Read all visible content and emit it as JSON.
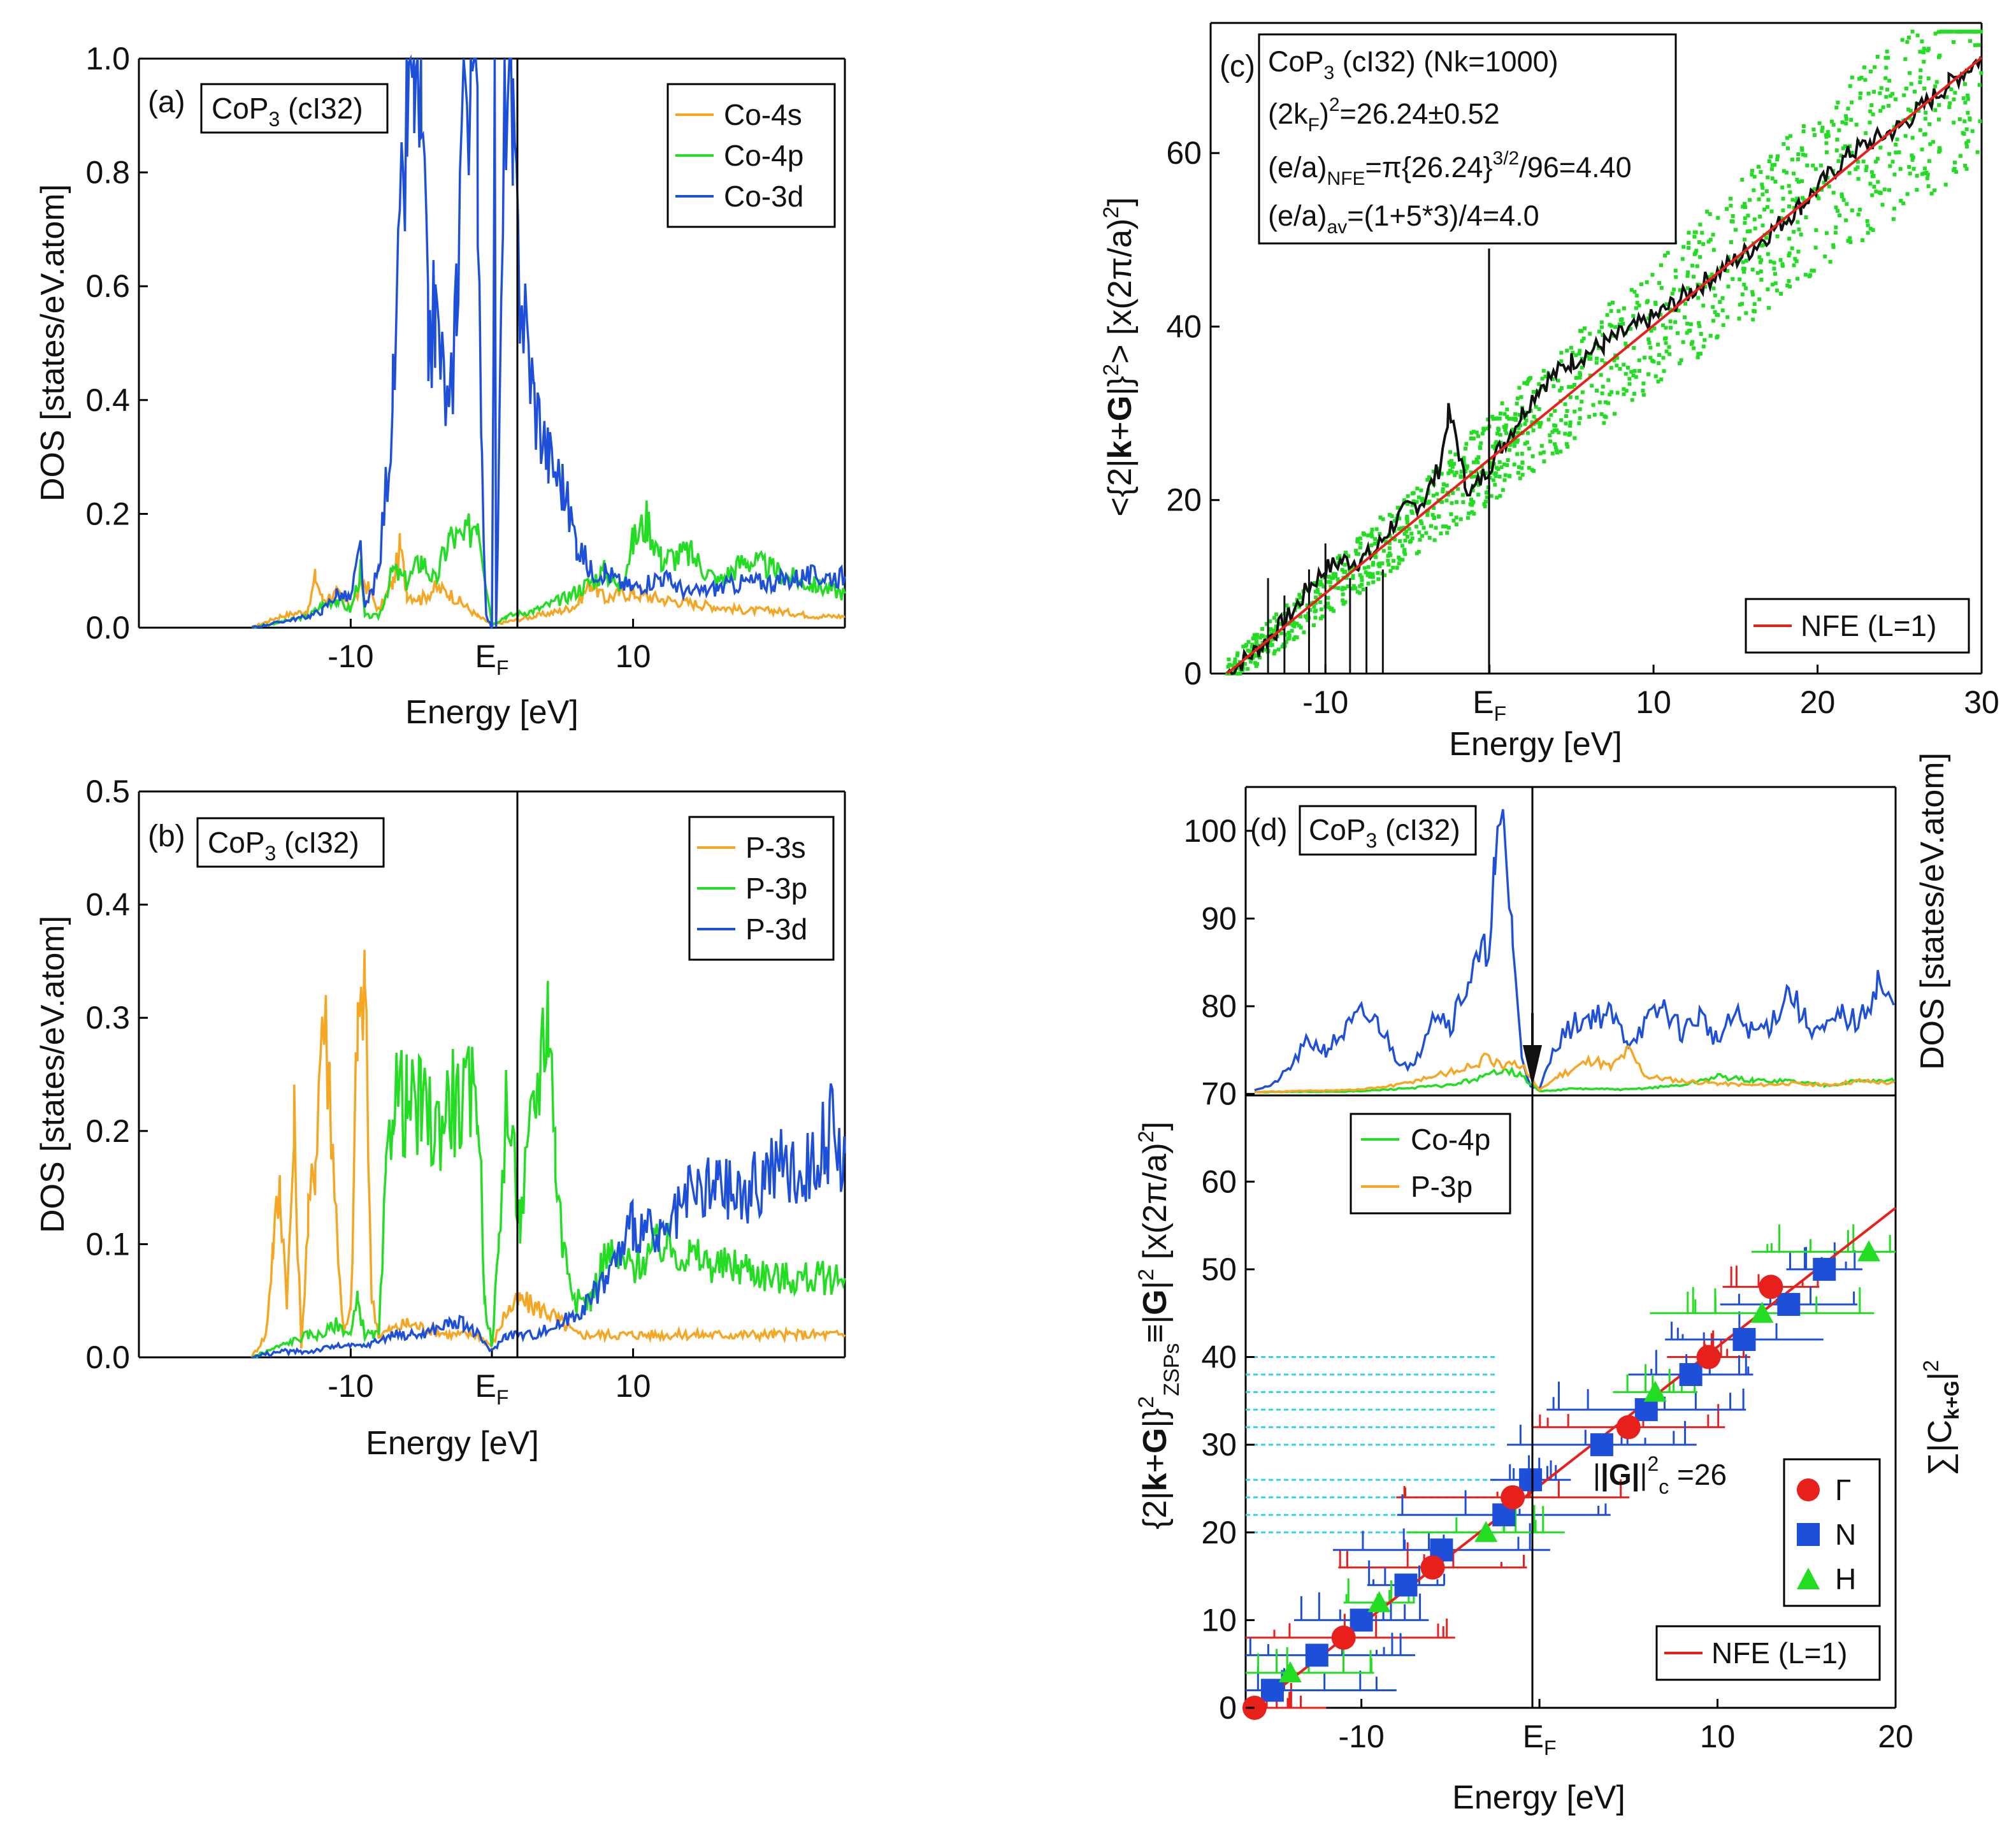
{
  "colors": {
    "orange": "#f5a623",
    "green": "#22dd22",
    "blue": "#1e4fd8",
    "red": "#e8201c",
    "black": "#111111",
    "cyan": "#33d6e0"
  },
  "chart_data": [
    {
      "panel": "a",
      "type": "line",
      "panel_label": "(a)",
      "title_base": "CoP",
      "title_sub": "3",
      "title_rest": " (cI32)",
      "xlabel": "Energy [eV]",
      "ylabel": "DOS [states/eV.atom]",
      "xlim": [
        -25,
        25
      ],
      "ylim": [
        0,
        1.0
      ],
      "yticks": [
        "0.0",
        "0.2",
        "0.4",
        "0.6",
        "0.8",
        "1.0"
      ],
      "ytick_values": [
        0,
        0.2,
        0.4,
        0.6,
        0.8,
        1.0
      ],
      "xticks": [
        "-10",
        "E",
        "10"
      ],
      "xtick_values": [
        -10,
        0,
        10
      ],
      "ef_sub": "F",
      "legend": [
        "Co-4s",
        "Co-4p",
        "Co-3d"
      ],
      "series": [
        {
          "name": "Co-4s",
          "color": "#f5a623",
          "x": [
            -17,
            -15,
            -13,
            -12.5,
            -12,
            -11,
            -10,
            -9,
            -8,
            -7,
            -6.5,
            -6,
            -5,
            -4,
            -3,
            -2,
            -1,
            -0.3,
            0,
            1,
            3,
            5,
            6,
            7,
            8,
            9,
            10,
            12,
            15,
            18,
            20,
            23,
            25
          ],
          "y": [
            0,
            0.02,
            0.03,
            0.09,
            0.05,
            0.06,
            0.04,
            0.08,
            0.03,
            0.08,
            0.14,
            0.06,
            0.05,
            0.07,
            0.06,
            0.04,
            0.02,
            0.01,
            0.005,
            0.01,
            0.02,
            0.03,
            0.04,
            0.08,
            0.05,
            0.06,
            0.06,
            0.05,
            0.04,
            0.03,
            0.03,
            0.02,
            0.02
          ]
        },
        {
          "name": "Co-4p",
          "color": "#22dd22",
          "x": [
            -17,
            -15,
            -13,
            -12,
            -11,
            -10,
            -9.3,
            -9,
            -8,
            -7,
            -6,
            -5,
            -4,
            -3,
            -2,
            -1,
            -0.4,
            0,
            1,
            3,
            5,
            7,
            8,
            9,
            10,
            11,
            12,
            14,
            16,
            18,
            20,
            22,
            25
          ],
          "y": [
            0,
            0.01,
            0.02,
            0.04,
            0.05,
            0.03,
            0.1,
            0.02,
            0.02,
            0.1,
            0.08,
            0.12,
            0.08,
            0.16,
            0.15,
            0.2,
            0.08,
            0.005,
            0.02,
            0.03,
            0.05,
            0.08,
            0.1,
            0.07,
            0.15,
            0.19,
            0.12,
            0.13,
            0.08,
            0.12,
            0.1,
            0.08,
            0.06
          ]
        },
        {
          "name": "Co-3d",
          "color": "#1e4fd8",
          "x": [
            -17,
            -15,
            -13,
            -12,
            -11,
            -10,
            -9.3,
            -9,
            -8,
            -7,
            -6,
            -5.5,
            -5,
            -4.5,
            -4,
            -3,
            -2.5,
            -2,
            -1.5,
            -1,
            -0.7,
            -0.4,
            0,
            0.2,
            0.3,
            1,
            1.5,
            2,
            3,
            4,
            5,
            6,
            7,
            8,
            9,
            10,
            12,
            14,
            16,
            18,
            20,
            22,
            25
          ],
          "y": [
            0,
            0.01,
            0.02,
            0.03,
            0.06,
            0.05,
            0.14,
            0.03,
            0.1,
            0.4,
            0.9,
            1.0,
            0.85,
            0.5,
            0.55,
            0.35,
            0.6,
            1.0,
            1.0,
            0.85,
            0.3,
            0.02,
            0.0,
            1.0,
            0.0,
            1.0,
            0.8,
            0.6,
            0.4,
            0.3,
            0.25,
            0.15,
            0.1,
            0.1,
            0.08,
            0.07,
            0.09,
            0.06,
            0.07,
            0.08,
            0.08,
            0.09,
            0.09
          ]
        }
      ]
    },
    {
      "panel": "b",
      "type": "line",
      "panel_label": "(b)",
      "title_base": "CoP",
      "title_sub": "3",
      "title_rest": " (cI32)",
      "xlabel": "Energy [eV]",
      "ylabel": "DOS [states/eV.atom]",
      "xlim": [
        -25,
        25
      ],
      "ylim": [
        0,
        0.5
      ],
      "yticks": [
        "0.0",
        "0.1",
        "0.2",
        "0.3",
        "0.4",
        "0.5"
      ],
      "ytick_values": [
        0,
        0.1,
        0.2,
        0.3,
        0.4,
        0.5
      ],
      "xticks": [
        "-10",
        "E",
        "10"
      ],
      "xtick_values": [
        -10,
        0,
        10
      ],
      "ef_sub": "F",
      "legend": [
        "P-3s",
        "P-3p",
        "P-3d"
      ],
      "series": [
        {
          "name": "P-3s",
          "color": "#f5a623",
          "x": [
            -17,
            -16,
            -15.5,
            -15,
            -14.5,
            -14,
            -13.5,
            -13,
            -12.5,
            -12,
            -11.5,
            -11,
            -10.5,
            -10,
            -9.5,
            -9,
            -8.5,
            -8,
            -6,
            -3,
            -1,
            0,
            1,
            2,
            4,
            6,
            8,
            10,
            15,
            20,
            25
          ],
          "y": [
            0,
            0.02,
            0.1,
            0.15,
            0.05,
            0.2,
            0.01,
            0.12,
            0.18,
            0.31,
            0.25,
            0.12,
            0.02,
            0.04,
            0.3,
            0.32,
            0.05,
            0.02,
            0.03,
            0.02,
            0.02,
            0.01,
            0.04,
            0.05,
            0.04,
            0.02,
            0.02,
            0.02,
            0.02,
            0.02,
            0.02
          ]
        },
        {
          "name": "P-3p",
          "color": "#22dd22",
          "x": [
            -17,
            -15,
            -13,
            -12,
            -11,
            -10,
            -9.5,
            -9,
            -8.5,
            -8,
            -7.5,
            -7,
            -6,
            -5,
            -4,
            -3,
            -2,
            -1,
            -0.5,
            0,
            0.5,
            1,
            2,
            3,
            4,
            4.5,
            5,
            6,
            7,
            8,
            10,
            12,
            14,
            16,
            18,
            20,
            22,
            25
          ],
          "y": [
            0,
            0.01,
            0.02,
            0.02,
            0.03,
            0.02,
            0.05,
            0.02,
            0.02,
            0.02,
            0.15,
            0.24,
            0.22,
            0.22,
            0.2,
            0.23,
            0.22,
            0.24,
            0.05,
            0.01,
            0.1,
            0.23,
            0.12,
            0.22,
            0.32,
            0.18,
            0.1,
            0.05,
            0.05,
            0.09,
            0.08,
            0.1,
            0.09,
            0.08,
            0.08,
            0.07,
            0.07,
            0.07
          ]
        },
        {
          "name": "P-3d",
          "color": "#1e4fd8",
          "x": [
            -17,
            -15,
            -13,
            -11,
            -9,
            -7,
            -5,
            -3,
            -2,
            -1,
            0,
            1,
            3,
            5,
            7,
            9,
            10,
            12,
            14,
            16,
            18,
            20,
            22,
            24,
            25
          ],
          "y": [
            0,
            0.005,
            0.005,
            0.01,
            0.01,
            0.02,
            0.02,
            0.03,
            0.03,
            0.02,
            0.005,
            0.02,
            0.02,
            0.03,
            0.05,
            0.09,
            0.12,
            0.1,
            0.14,
            0.15,
            0.14,
            0.17,
            0.16,
            0.2,
            0.18
          ]
        }
      ]
    },
    {
      "panel": "c",
      "type": "scatter",
      "panel_label": "(c)",
      "title_base": "CoP",
      "title_sub": "3",
      "title_rest": " (cI32) (Nk=1000)",
      "xlabel": "Energy [eV]",
      "ylabel": "<{2|k+G|}²> [x(2π/a)²]",
      "xlim": [
        -17,
        30
      ],
      "ylim": [
        0,
        75
      ],
      "yticks": [
        "0",
        "20",
        "40",
        "60"
      ],
      "ytick_values": [
        0,
        20,
        40,
        60
      ],
      "xticks": [
        "-10",
        "E",
        "10",
        "20",
        "30"
      ],
      "xtick_values": [
        -10,
        0,
        10,
        20,
        30
      ],
      "ef_sub": "F",
      "annotation_lines": [
        "(2k_F)^2=26.24±0.52",
        "(e/a)_NFE=π{26.24}^3/2/96=4.40",
        "(e/a)_av=(1+5*3)/4=4.0"
      ],
      "ann_2kF": {
        "a": "(2k",
        "b": "F",
        "c": ")",
        "d": "2",
        "e": "=26.24±0.52"
      },
      "ann_NFE": {
        "a": "(e/a)",
        "b": "NFE",
        "c": "=π{26.24}",
        "d": "3/2",
        "e": "/96=4.40"
      },
      "ann_av": {
        "a": "(e/a)",
        "b": "av",
        "c": "=(1+5*3)/4=4.0"
      },
      "legend": [
        "NFE (L=1)"
      ],
      "nfe_line": {
        "x": [
          -16,
          30
        ],
        "y": [
          0,
          71
        ]
      },
      "average_curve": {
        "x": [
          -16,
          -14,
          -13,
          -12,
          -11,
          -10,
          -9,
          -8,
          -7,
          -6,
          -5,
          -4,
          -3,
          -2.5,
          -2,
          -1.5,
          -1,
          0,
          1,
          2,
          3,
          5,
          7,
          10,
          13,
          16,
          19,
          22,
          25,
          28,
          30
        ],
        "y": [
          0,
          3,
          5,
          7,
          10,
          12,
          13,
          13,
          14,
          17,
          19,
          20,
          24,
          30,
          27,
          22,
          21,
          24,
          27,
          30,
          33,
          36,
          38,
          41,
          45,
          49,
          54,
          60,
          63,
          68,
          71
        ]
      }
    },
    {
      "panel": "d",
      "type": "scatter",
      "panel_label": "(d)",
      "title_base": "CoP",
      "title_sub": "3",
      "title_rest": " (cI32)",
      "xlabel": "Energy [eV]",
      "ylabel": "{2|k+G|}²_ZSPs≡|G|² [x(2π/a)²]",
      "ylabel_right": "DOS [states/eV.atom]",
      "ylabel_right2": "Σ|C_k+G|²",
      "xlim": [
        -16.5,
        20
      ],
      "ylim": [
        0,
        105
      ],
      "yticks": [
        "0",
        "10",
        "20",
        "30",
        "40",
        "50",
        "60",
        "70",
        "80",
        "90",
        "100"
      ],
      "ytick_values": [
        0,
        10,
        20,
        30,
        40,
        50,
        60,
        70,
        80,
        90,
        100
      ],
      "xticks": [
        "-10",
        "E",
        "10",
        "20"
      ],
      "xtick_values": [
        -10,
        0,
        10,
        20
      ],
      "ef_sub": "F",
      "annotation_Gc": {
        "a": "|G|",
        "b": "2",
        "c": "c",
        "d": " =26"
      },
      "dos_legend": [
        "Co-4p",
        "P-3p"
      ],
      "symbol_legend": [
        "Γ",
        "N",
        "H"
      ],
      "line_legend": [
        "NFE (L=1)"
      ],
      "nfe_line": {
        "x": [
          -16,
          20
        ],
        "y": [
          0,
          57
        ]
      },
      "gamma_points": {
        "x": [
          -16,
          -11,
          -6,
          -1.5,
          5,
          9.5,
          13
        ],
        "y": [
          0,
          8,
          16,
          24,
          32,
          40,
          48
        ]
      },
      "n_points": {
        "x": [
          -15,
          -12.5,
          -10,
          -7.5,
          -5.5,
          -2,
          -0.5,
          3.5,
          6,
          8.5,
          11.5,
          14,
          16
        ],
        "y": [
          2,
          6,
          10,
          14,
          18,
          22,
          26,
          30,
          34,
          38,
          42,
          46,
          50
        ]
      },
      "h_points": {
        "x": [
          -14,
          -9,
          -3,
          6.5,
          12.5,
          18.5
        ],
        "y": [
          4,
          12,
          20,
          36,
          45,
          52
        ]
      },
      "dos_co3d": {
        "x": [
          -16,
          -15,
          -14,
          -13,
          -12,
          -11,
          -10,
          -9,
          -8,
          -7,
          -6,
          -5,
          -4,
          -3,
          -2.5,
          -2,
          -1.5,
          -1,
          -0.5,
          0,
          1,
          2,
          3,
          4,
          5,
          6,
          7,
          8,
          9,
          10,
          11,
          12,
          13,
          14,
          15,
          16,
          17,
          18,
          19,
          20
        ],
        "y": [
          70.5,
          71,
          73,
          76,
          75,
          77,
          79,
          78,
          74,
          73,
          80,
          78,
          83,
          86,
          95,
          100,
          88,
          74,
          71,
          70.5,
          76,
          78,
          79,
          79,
          76,
          78,
          80,
          77,
          79,
          76,
          79,
          77,
          78,
          82,
          78,
          77,
          79,
          78,
          83,
          79
        ]
      },
      "dos_co4p": {
        "x": [
          -16,
          -10,
          -5,
          -3,
          -2,
          -1,
          0,
          2,
          5,
          8,
          10,
          12,
          14,
          16,
          18,
          20
        ],
        "y": [
          70.2,
          70.3,
          71,
          72,
          73,
          72,
          70.3,
          70.6,
          70.5,
          71,
          72,
          71.5,
          71.5,
          71,
          71.5,
          71.5
        ]
      },
      "dos_p3p": {
        "x": [
          -16,
          -12,
          -10,
          -8,
          -6,
          -4,
          -3,
          -2,
          -1,
          0,
          1,
          2,
          3,
          4,
          5,
          6,
          8,
          10,
          12,
          14,
          16,
          18,
          20
        ],
        "y": [
          70.2,
          70.4,
          70.5,
          71,
          72,
          73,
          74,
          73,
          73.5,
          70.4,
          72,
          73,
          74,
          73,
          75,
          72,
          71.5,
          71.2,
          71,
          71.2,
          71,
          71.5,
          71.2
        ]
      }
    }
  ]
}
